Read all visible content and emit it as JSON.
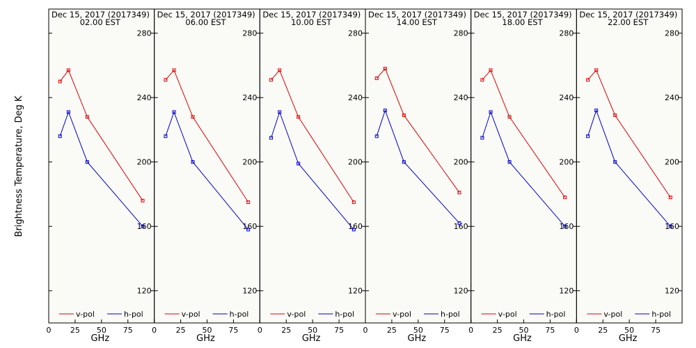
{
  "chart_data": {
    "type": "line",
    "ylabel": "Brightness Temperature, Deg K",
    "xlabel": "GHz",
    "xlim": [
      0,
      100
    ],
    "ylim": [
      100,
      295
    ],
    "x_ticks": [
      0,
      25,
      50,
      75,
      100
    ],
    "x_ticks_shown": [
      "0",
      "25",
      "50",
      "75"
    ],
    "y_ticks": [
      120,
      160,
      200,
      240,
      280
    ],
    "colors": {
      "v-pol": "#dd0000",
      "h-pol": "#0000cc"
    },
    "legend": "bottom",
    "panels": [
      {
        "date": "Dec 15, 2017 (2017349)",
        "time": "02.00 EST",
        "series": [
          {
            "name": "v-pol",
            "x": [
              10.7,
              18.7,
              36.5,
              89
            ],
            "y": [
              250,
              257,
              228,
              176
            ]
          },
          {
            "name": "h-pol",
            "x": [
              10.7,
              18.7,
              36.5,
              89
            ],
            "y": [
              216,
              231,
              200,
              160
            ]
          }
        ]
      },
      {
        "date": "Dec 15, 2017 (2017349)",
        "time": "06.00 EST",
        "series": [
          {
            "name": "v-pol",
            "x": [
              10.7,
              18.7,
              36.5,
              89
            ],
            "y": [
              251,
              257,
              228,
              175
            ]
          },
          {
            "name": "h-pol",
            "x": [
              10.7,
              18.7,
              36.5,
              89
            ],
            "y": [
              216,
              231,
              200,
              158
            ]
          }
        ]
      },
      {
        "date": "Dec 15, 2017 (2017349)",
        "time": "10.00 EST",
        "series": [
          {
            "name": "v-pol",
            "x": [
              10.7,
              18.7,
              36.5,
              89
            ],
            "y": [
              251,
              257,
              228,
              175
            ]
          },
          {
            "name": "h-pol",
            "x": [
              10.7,
              18.7,
              36.5,
              89
            ],
            "y": [
              215,
              231,
              199,
              158
            ]
          }
        ]
      },
      {
        "date": "Dec 15, 2017 (2017349)",
        "time": "14.00 EST",
        "series": [
          {
            "name": "v-pol",
            "x": [
              10.7,
              18.7,
              36.5,
              89
            ],
            "y": [
              252,
              258,
              229,
              181
            ]
          },
          {
            "name": "h-pol",
            "x": [
              10.7,
              18.7,
              36.5,
              89
            ],
            "y": [
              216,
              232,
              200,
              162
            ]
          }
        ]
      },
      {
        "date": "Dec 15, 2017 (2017349)",
        "time": "18.00 EST",
        "series": [
          {
            "name": "v-pol",
            "x": [
              10.7,
              18.7,
              36.5,
              89
            ],
            "y": [
              251,
              257,
              228,
              178
            ]
          },
          {
            "name": "h-pol",
            "x": [
              10.7,
              18.7,
              36.5,
              89
            ],
            "y": [
              215,
              231,
              200,
              160
            ]
          }
        ]
      },
      {
        "date": "Dec 15, 2017 (2017349)",
        "time": "22.00 EST",
        "series": [
          {
            "name": "v-pol",
            "x": [
              10.7,
              18.7,
              36.5,
              89
            ],
            "y": [
              251,
              257,
              229,
              178
            ]
          },
          {
            "name": "h-pol",
            "x": [
              10.7,
              18.7,
              36.5,
              89
            ],
            "y": [
              216,
              232,
              200,
              160
            ]
          }
        ]
      }
    ]
  }
}
